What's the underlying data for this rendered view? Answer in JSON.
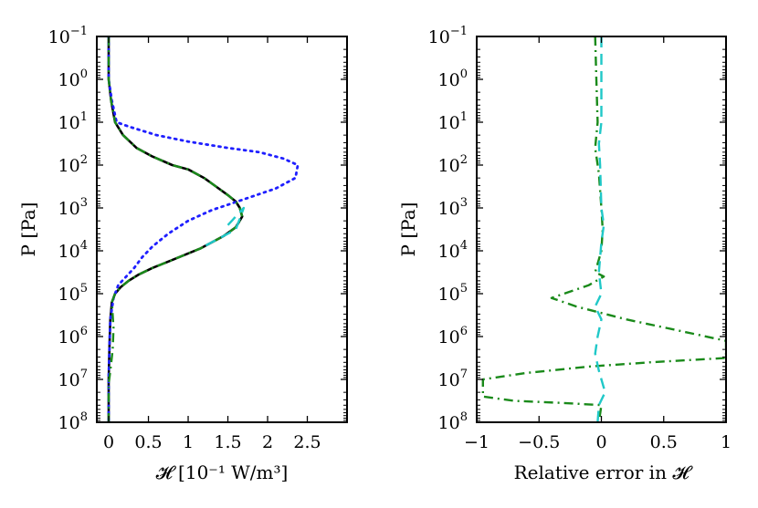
{
  "chart_data": [
    {
      "type": "line",
      "xlabel": "𝓗 [10⁻¹ W/m³]",
      "ylabel": "P [Pa]",
      "xlim": [
        -0.15,
        3.0
      ],
      "ylim_log10": [
        -1,
        8
      ],
      "y_scale": "log",
      "y_inverted": true,
      "x_ticks": [
        0,
        0.5,
        1,
        1.5,
        2,
        2.5
      ],
      "x_tick_labels": [
        "0",
        "0.5",
        "1",
        "1.5",
        "2",
        "2.5"
      ],
      "y_tick_exponents": [
        -1,
        0,
        1,
        2,
        3,
        4,
        5,
        6,
        7,
        8
      ],
      "y_tick_base": "10",
      "series": [
        {
          "name": "reference-solid",
          "color": "#000000",
          "style": "solid",
          "points": [
            [
              0.0,
              -1.0
            ],
            [
              0.0,
              0.0
            ],
            [
              0.03,
              0.5
            ],
            [
              0.08,
              1.0
            ],
            [
              0.18,
              1.3
            ],
            [
              0.35,
              1.6
            ],
            [
              0.55,
              1.8
            ],
            [
              0.8,
              2.0
            ],
            [
              1.0,
              2.1
            ],
            [
              1.2,
              2.3
            ],
            [
              1.35,
              2.5
            ],
            [
              1.5,
              2.7
            ],
            [
              1.6,
              2.85
            ],
            [
              1.65,
              3.0
            ],
            [
              1.68,
              3.2
            ],
            [
              1.6,
              3.45
            ],
            [
              1.45,
              3.65
            ],
            [
              1.3,
              3.8
            ],
            [
              1.15,
              3.95
            ],
            [
              0.95,
              4.1
            ],
            [
              0.75,
              4.25
            ],
            [
              0.55,
              4.4
            ],
            [
              0.38,
              4.55
            ],
            [
              0.25,
              4.7
            ],
            [
              0.15,
              4.85
            ],
            [
              0.08,
              5.0
            ],
            [
              0.04,
              5.2
            ],
            [
              0.02,
              5.6
            ],
            [
              0.01,
              6.2
            ],
            [
              0.0,
              7.0
            ],
            [
              0.0,
              8.0
            ]
          ]
        },
        {
          "name": "comparison-dotted",
          "color": "#1f1fff",
          "style": "dotted",
          "points": [
            [
              0.0,
              -1.0
            ],
            [
              0.0,
              0.0
            ],
            [
              0.04,
              0.5
            ],
            [
              0.1,
              1.0
            ],
            [
              0.25,
              1.1
            ],
            [
              0.6,
              1.3
            ],
            [
              1.0,
              1.45
            ],
            [
              1.5,
              1.6
            ],
            [
              1.9,
              1.7
            ],
            [
              2.2,
              1.85
            ],
            [
              2.38,
              2.0
            ],
            [
              2.35,
              2.3
            ],
            [
              2.1,
              2.55
            ],
            [
              1.7,
              2.8
            ],
            [
              1.3,
              3.05
            ],
            [
              1.0,
              3.3
            ],
            [
              0.75,
              3.6
            ],
            [
              0.55,
              3.9
            ],
            [
              0.42,
              4.15
            ],
            [
              0.32,
              4.4
            ],
            [
              0.22,
              4.6
            ],
            [
              0.12,
              4.8
            ],
            [
              0.06,
              5.1
            ],
            [
              0.02,
              5.6
            ],
            [
              0.01,
              6.2
            ],
            [
              0.0,
              7.0
            ],
            [
              0.0,
              8.0
            ]
          ]
        },
        {
          "name": "comparison-dashdot",
          "color": "#1a8a1a",
          "style": "dashdot",
          "points": [
            [
              0.0,
              -1.0
            ],
            [
              0.0,
              0.0
            ],
            [
              0.03,
              0.5
            ],
            [
              0.08,
              1.0
            ],
            [
              0.18,
              1.3
            ],
            [
              0.35,
              1.6
            ],
            [
              0.55,
              1.8
            ],
            [
              0.8,
              2.0
            ],
            [
              1.0,
              2.1
            ],
            [
              1.2,
              2.3
            ],
            [
              1.35,
              2.5
            ],
            [
              1.5,
              2.7
            ],
            [
              1.6,
              2.85
            ],
            [
              1.65,
              3.0
            ],
            [
              1.68,
              3.2
            ],
            [
              1.6,
              3.45
            ],
            [
              1.45,
              3.65
            ],
            [
              1.3,
              3.8
            ],
            [
              1.15,
              3.95
            ],
            [
              0.95,
              4.1
            ],
            [
              0.75,
              4.25
            ],
            [
              0.55,
              4.4
            ],
            [
              0.38,
              4.55
            ],
            [
              0.25,
              4.7
            ],
            [
              0.15,
              4.85
            ],
            [
              0.08,
              5.0
            ],
            [
              0.04,
              5.2
            ],
            [
              0.06,
              5.8
            ],
            [
              0.05,
              6.3
            ],
            [
              0.02,
              6.8
            ],
            [
              0.0,
              7.1
            ],
            [
              0.0,
              8.0
            ]
          ]
        },
        {
          "name": "comparison-dashed",
          "color": "#20c8c8",
          "style": "dashed",
          "points": [
            [
              1.5,
              3.4
            ],
            [
              1.6,
              3.2
            ],
            [
              1.7,
              3.0
            ],
            [
              1.6,
              3.5
            ],
            [
              1.45,
              3.65
            ],
            [
              1.3,
              3.8
            ],
            [
              1.15,
              3.95
            ]
          ]
        }
      ]
    },
    {
      "type": "line",
      "xlabel": "Relative error in 𝓗",
      "ylabel": "P [Pa]",
      "xlim": [
        -1.0,
        1.0
      ],
      "ylim_log10": [
        -1,
        8
      ],
      "y_scale": "log",
      "y_inverted": true,
      "x_ticks": [
        -1,
        -0.5,
        0,
        0.5,
        1
      ],
      "x_tick_labels": [
        "−1",
        "−0.5",
        "0",
        "0.5",
        "1"
      ],
      "y_tick_exponents": [
        -1,
        0,
        1,
        2,
        3,
        4,
        5,
        6,
        7,
        8
      ],
      "y_tick_base": "10",
      "series": [
        {
          "name": "error-dashdot",
          "color": "#1a8a1a",
          "style": "dashdot",
          "points": [
            [
              -0.05,
              -1.0
            ],
            [
              -0.04,
              0.0
            ],
            [
              -0.03,
              1.0
            ],
            [
              -0.05,
              1.6
            ],
            [
              -0.02,
              2.2
            ],
            [
              0.0,
              3.0
            ],
            [
              0.01,
              3.5
            ],
            [
              0.0,
              4.0
            ],
            [
              -0.05,
              4.5
            ],
            [
              0.02,
              4.6
            ],
            [
              -0.1,
              4.8
            ],
            [
              -0.4,
              5.1
            ],
            [
              -0.2,
              5.3
            ],
            [
              0.2,
              5.6
            ],
            [
              0.6,
              5.85
            ],
            [
              1.0,
              6.1
            ],
            [
              1.0,
              6.5
            ],
            [
              0.4,
              6.6
            ],
            [
              -0.1,
              6.7
            ],
            [
              -0.6,
              6.85
            ],
            [
              -0.95,
              7.0
            ],
            [
              -0.95,
              7.4
            ],
            [
              -0.7,
              7.5
            ],
            [
              -0.3,
              7.55
            ],
            [
              0.0,
              7.6
            ],
            [
              -0.02,
              8.0
            ]
          ]
        },
        {
          "name": "error-dashed",
          "color": "#20c8c8",
          "style": "dashed",
          "points": [
            [
              0.0,
              -1.0
            ],
            [
              0.0,
              0.0
            ],
            [
              0.0,
              1.0
            ],
            [
              -0.02,
              1.5
            ],
            [
              -0.01,
              2.0
            ],
            [
              0.0,
              3.0
            ],
            [
              0.02,
              3.4
            ],
            [
              0.0,
              3.8
            ],
            [
              -0.02,
              4.5
            ],
            [
              0.0,
              5.0
            ],
            [
              -0.05,
              5.3
            ],
            [
              0.0,
              5.6
            ],
            [
              -0.03,
              6.0
            ],
            [
              -0.05,
              6.4
            ],
            [
              -0.02,
              6.8
            ],
            [
              0.03,
              7.3
            ],
            [
              -0.02,
              7.6
            ],
            [
              -0.03,
              8.0
            ]
          ]
        }
      ]
    }
  ]
}
